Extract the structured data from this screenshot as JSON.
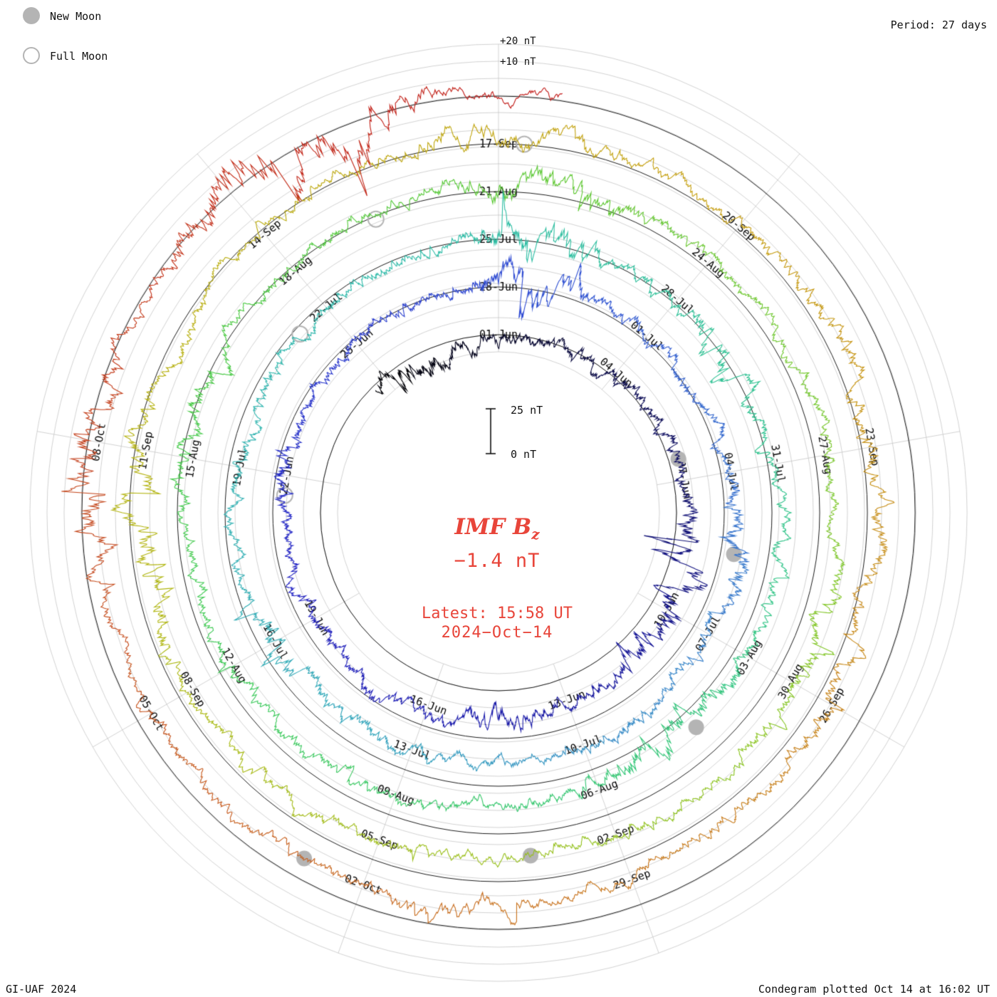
{
  "legend": {
    "new_moon_label": "New Moon",
    "full_moon_label": "Full Moon"
  },
  "header": {
    "period_label": "Period: 27 days"
  },
  "radial_axis": {
    "outer_label": "+20 nT",
    "inner_label": "+10 nT"
  },
  "scale_bar": {
    "top_label": "25 nT",
    "bottom_label": "0 nT"
  },
  "center_panel": {
    "quantity_prefix": "IMF B",
    "quantity_subscript": "z",
    "current_value": "−1.4 nT",
    "latest_time": "Latest: 15:58 UT",
    "latest_date": "2024−Oct−14",
    "text_color": "#e8453a"
  },
  "footer": {
    "credit": "GI-UAF 2024",
    "plotted": "Condegram plotted Oct 14 at 16:02 UT"
  },
  "chart_data": {
    "type": "line",
    "variant": "condegram_spiral",
    "quantity": "IMF Bz",
    "units": "nT",
    "latest_value_nT": -1.4,
    "latest_timestamp": "2024-Oct-14 15:58 UT",
    "plotted_timestamp": "Oct 14 at 16:02 UT",
    "period_days": 27,
    "label_interval_days": 3,
    "radial_gridline_step_nT": 10,
    "scale_bar_nT": 25,
    "reference_labels": [
      "+10 nT",
      "+20 nT"
    ],
    "rotation_start_dates": [
      "01-Jun",
      "28-Jun",
      "25-Jul",
      "21-Aug",
      "17-Sep"
    ],
    "date_labels": [
      {
        "t": 0,
        "label": "01-Jun"
      },
      {
        "t": 3,
        "label": "04-Jun"
      },
      {
        "t": 6,
        "label": "07-Jun"
      },
      {
        "t": 9,
        "label": "10-Jun"
      },
      {
        "t": 12,
        "label": "13-Jun"
      },
      {
        "t": 15,
        "label": "16-Jun"
      },
      {
        "t": 18,
        "label": "19-Jun"
      },
      {
        "t": 21,
        "label": "22-Jun"
      },
      {
        "t": 24,
        "label": "25-Jun"
      },
      {
        "t": 27,
        "label": "28-Jun"
      },
      {
        "t": 30,
        "label": "01-Jul"
      },
      {
        "t": 33,
        "label": "04-Jul"
      },
      {
        "t": 36,
        "label": "07-Jul"
      },
      {
        "t": 39,
        "label": "10-Jul"
      },
      {
        "t": 42,
        "label": "13-Jul"
      },
      {
        "t": 45,
        "label": "16-Jul"
      },
      {
        "t": 48,
        "label": "19-Jul"
      },
      {
        "t": 51,
        "label": "22-Jul"
      },
      {
        "t": 54,
        "label": "25-Jul"
      },
      {
        "t": 57,
        "label": "28-Jul"
      },
      {
        "t": 60,
        "label": "31-Jul"
      },
      {
        "t": 63,
        "label": "03-Aug"
      },
      {
        "t": 66,
        "label": "06-Aug"
      },
      {
        "t": 69,
        "label": "09-Aug"
      },
      {
        "t": 72,
        "label": "12-Aug"
      },
      {
        "t": 75,
        "label": "15-Aug"
      },
      {
        "t": 78,
        "label": "18-Aug"
      },
      {
        "t": 81,
        "label": "21-Aug"
      },
      {
        "t": 84,
        "label": "24-Aug"
      },
      {
        "t": 87,
        "label": "27-Aug"
      },
      {
        "t": 90,
        "label": "30-Aug"
      },
      {
        "t": 93,
        "label": "02-Sep"
      },
      {
        "t": 96,
        "label": "05-Sep"
      },
      {
        "t": 99,
        "label": "08-Sep"
      },
      {
        "t": 102,
        "label": "11-Sep"
      },
      {
        "t": 105,
        "label": "14-Sep"
      },
      {
        "t": 108,
        "label": "17-Sep"
      },
      {
        "t": 111,
        "label": "20-Sep"
      },
      {
        "t": 114,
        "label": "23-Sep"
      },
      {
        "t": 117,
        "label": "26-Sep"
      },
      {
        "t": 120,
        "label": "29-Sep"
      },
      {
        "t": 123,
        "label": "02-Oct"
      },
      {
        "t": 126,
        "label": "05-Oct"
      },
      {
        "t": 129,
        "label": "08-Oct"
      }
    ],
    "moon_markers": {
      "color": "#b4b4b4",
      "new_moon": [
        {
          "date": "06-Jun",
          "t": 5.5
        },
        {
          "date": "05-Jul",
          "t": 34.5
        },
        {
          "date": "04-Aug",
          "t": 64.3
        },
        {
          "date": "03-Sep",
          "t": 94.1
        },
        {
          "date": "02-Oct",
          "t": 123.7
        }
      ],
      "full_moon": [
        {
          "date": "21-Jun",
          "t": 20.6
        },
        {
          "date": "21-Jul",
          "t": 50.4
        },
        {
          "date": "19-Aug",
          "t": 79.3
        },
        {
          "date": "17-Sep",
          "t": 108.3
        }
      ]
    },
    "colormap_stops": [
      [
        0.0,
        "#000000"
      ],
      [
        0.05,
        "#0c0c50"
      ],
      [
        0.1,
        "#16169a"
      ],
      [
        0.16,
        "#2222c4"
      ],
      [
        0.22,
        "#2e4ad2"
      ],
      [
        0.28,
        "#3a7ecc"
      ],
      [
        0.34,
        "#2fa8b8"
      ],
      [
        0.41,
        "#2abca4"
      ],
      [
        0.48,
        "#2ec47e"
      ],
      [
        0.55,
        "#3cc94f"
      ],
      [
        0.61,
        "#5ac731"
      ],
      [
        0.68,
        "#8ac420"
      ],
      [
        0.75,
        "#b2b40e"
      ],
      [
        0.82,
        "#c49c0a"
      ],
      [
        0.89,
        "#c7741a"
      ],
      [
        0.95,
        "#c4431c"
      ],
      [
        1.0,
        "#c01414"
      ]
    ],
    "synthetic_noise": {
      "seed": 11,
      "dt_days": 0.01,
      "t_start": -3.4,
      "t_end": 135.66,
      "quiet_sd_nT": 2.5,
      "storm_windows": [
        [
          -3.4,
          -1,
          1.8
        ],
        [
          6,
          11,
          2.2
        ],
        [
          12.5,
          14.5,
          1.8
        ],
        [
          20,
          22,
          1.6
        ],
        [
          26.2,
          28.8,
          2.6
        ],
        [
          33,
          35.5,
          1.9
        ],
        [
          44,
          46,
          1.7
        ],
        [
          53.2,
          55.8,
          2.5
        ],
        [
          57,
          59.5,
          1.8
        ],
        [
          63,
          66.5,
          2.1
        ],
        [
          74,
          77,
          1.9
        ],
        [
          80,
          83,
          2.3
        ],
        [
          88,
          91,
          1.7
        ],
        [
          99,
          103,
          2.1
        ],
        [
          106.5,
          109.5,
          1.9
        ],
        [
          111,
          118.5,
          1.6
        ],
        [
          121,
          123,
          1.7
        ],
        [
          127.2,
          130.2,
          3.0
        ],
        [
          130.8,
          134.6,
          3.6
        ]
      ]
    }
  }
}
